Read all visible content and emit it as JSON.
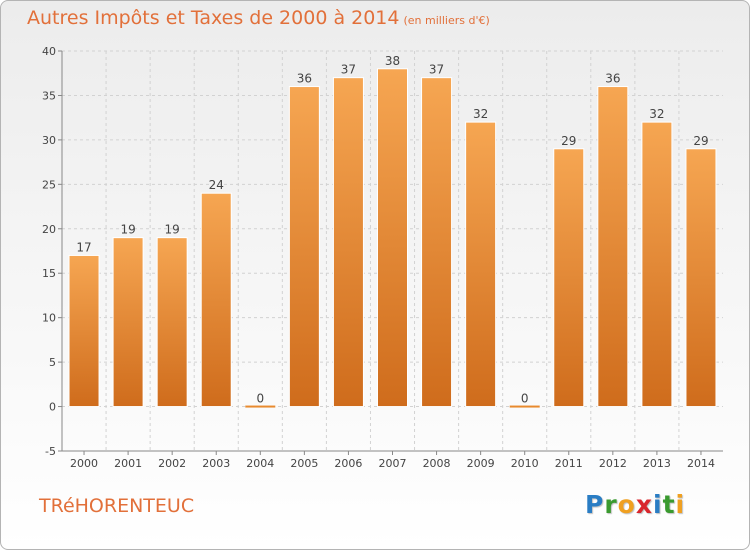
{
  "title": "Autres Impôts et Taxes de 2000 à 2014",
  "unit_note": "(en milliers d'€)",
  "commune": "TRéHORENTEUC",
  "logo": {
    "letters": [
      "P",
      "r",
      "o",
      "x",
      "i",
      "t",
      "i"
    ],
    "colors": [
      "#2a7dc4",
      "#3a9a2f",
      "#f0a020",
      "#d9262c",
      "#2a7dc4",
      "#3a9a2f",
      "#f0a020"
    ]
  },
  "chart_data": {
    "type": "bar",
    "categories": [
      "2000",
      "2001",
      "2002",
      "2003",
      "2004",
      "2005",
      "2006",
      "2007",
      "2008",
      "2009",
      "2010",
      "2011",
      "2012",
      "2013",
      "2014"
    ],
    "values": [
      17,
      19,
      19,
      24,
      0,
      36,
      37,
      38,
      37,
      32,
      0,
      29,
      36,
      32,
      29
    ],
    "ylim": [
      -5,
      40
    ],
    "yticks": [
      -5,
      0,
      5,
      10,
      15,
      20,
      25,
      30,
      35,
      40
    ],
    "grid": true,
    "bar_color": "#e88a2e"
  }
}
